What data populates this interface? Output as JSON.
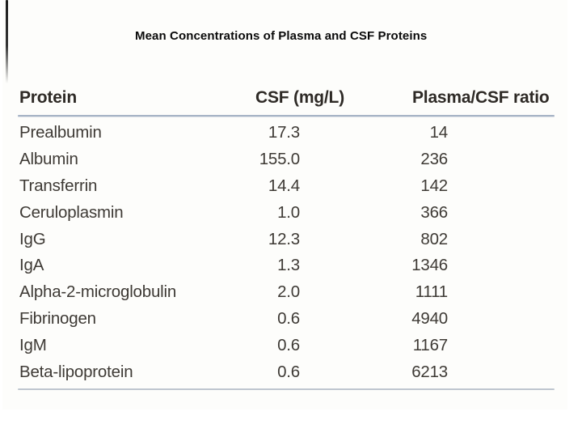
{
  "title": "Mean Concentrations of Plasma and CSF Proteins",
  "table": {
    "columns": [
      "Protein",
      "CSF (mg/L)",
      "Plasma/CSF ratio"
    ],
    "rows": [
      {
        "protein": "Prealbumin",
        "csf": "17.3",
        "ratio": "14"
      },
      {
        "protein": "Albumin",
        "csf": "155.0",
        "ratio": "236"
      },
      {
        "protein": "Transferrin",
        "csf": "14.4",
        "ratio": "142"
      },
      {
        "protein": "Ceruloplasmin",
        "csf": "1.0",
        "ratio": "366"
      },
      {
        "protein": "IgG",
        "csf": "12.3",
        "ratio": "802"
      },
      {
        "protein": "IgA",
        "csf": "1.3",
        "ratio": "1346"
      },
      {
        "protein": "Alpha-2-microglobulin",
        "csf": "2.0",
        "ratio": "1111"
      },
      {
        "protein": "Fibrinogen",
        "csf": "0.6",
        "ratio": "4940"
      },
      {
        "protein": "IgM",
        "csf": "0.6",
        "ratio": "1167"
      },
      {
        "protein": "Beta-lipoprotein",
        "csf": "0.6",
        "ratio": "6213"
      }
    ]
  },
  "colors": {
    "title_text": "#0a0a0a",
    "header_text": "#2e2a26",
    "body_text": "#3e3a35",
    "rule_top": "#a6b3c6",
    "rule_bottom": "#b3bcc7"
  }
}
